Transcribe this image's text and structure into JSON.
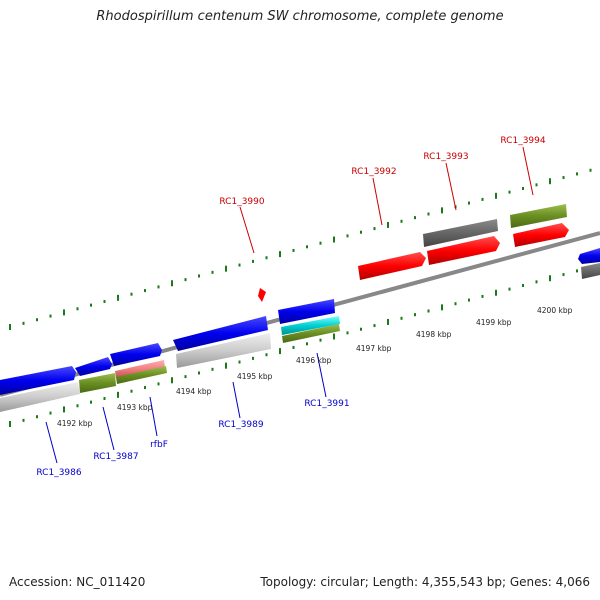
{
  "title": "Rhodospirillum centenum SW chromosome, complete genome",
  "accession": "Accession: NC_011420",
  "topology": "Topology: circular; Length: 4,355,543 bp; Genes: 4,066",
  "scale_labels": [
    "4192 kbp",
    "4193 kbp",
    "4194 kbp",
    "4195 kbp",
    "4196 kbp",
    "4197 kbp",
    "4198 kbp",
    "4199 kbp",
    "4200 kbp"
  ],
  "gene_labels_top": [
    "RC1_3990",
    "RC1_3992",
    "RC1_3993",
    "RC1_3994"
  ],
  "gene_labels_bottom": [
    "RC1_3986",
    "RC1_3987",
    "rfbF",
    "RC1_3989",
    "RC1_3991"
  ],
  "colors": {
    "label_top": "#cc0000",
    "label_bottom": "#0000cc",
    "forward_cds": "#ff0000",
    "reverse_cds": "#0000ee",
    "tick": "#1a7a1a",
    "backbone": "#888888"
  }
}
